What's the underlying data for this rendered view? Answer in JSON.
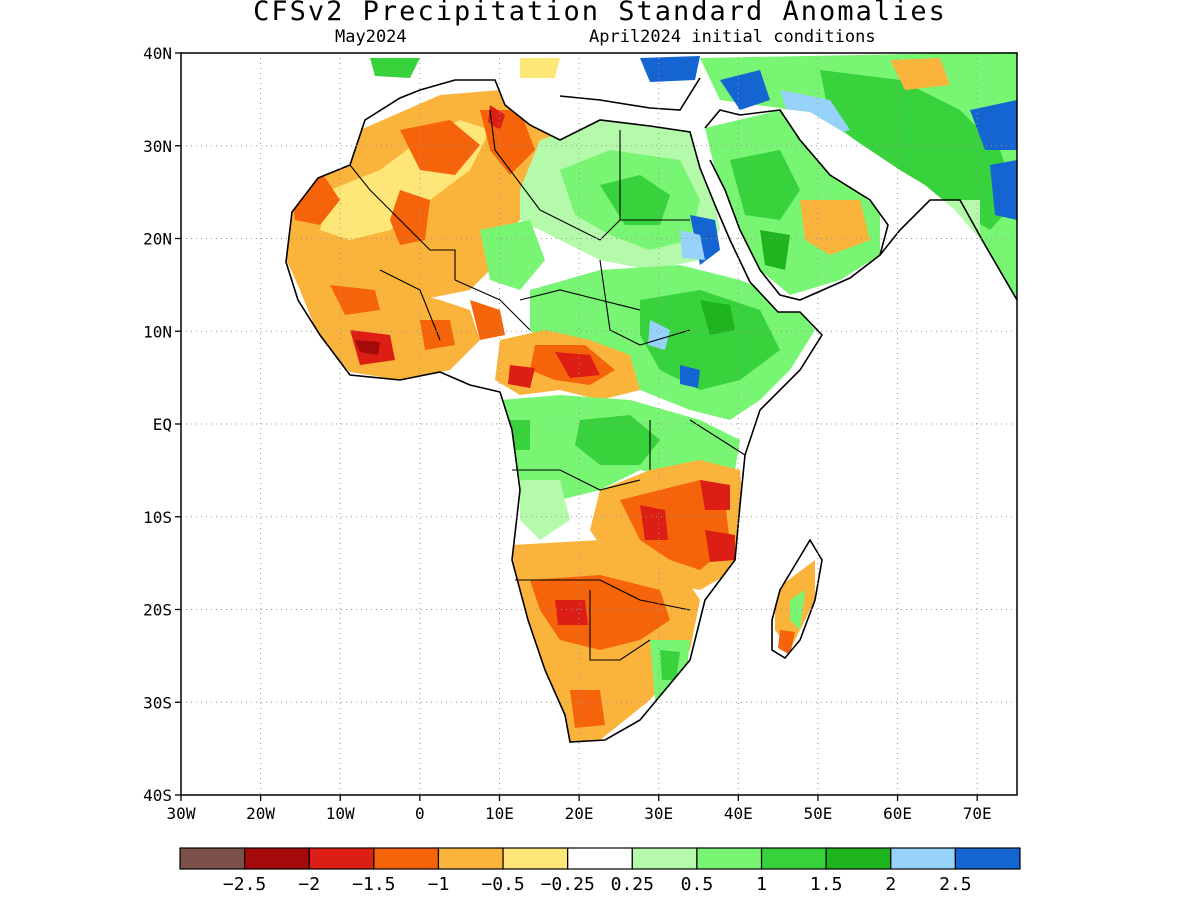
{
  "header": {
    "title": "CFSv2 Precipitation Standard Anomalies",
    "valid_month": "May2024",
    "init_conditions": "April2024 initial conditions"
  },
  "axes": {
    "lat_labels": [
      "40N",
      "30N",
      "20N",
      "10N",
      "EQ",
      "10S",
      "20S",
      "30S",
      "40S"
    ],
    "lat_values": [
      40,
      30,
      20,
      10,
      0,
      -10,
      -20,
      -30,
      -40
    ],
    "lon_labels": [
      "30W",
      "20W",
      "10W",
      "0",
      "10E",
      "20E",
      "30E",
      "40E",
      "50E",
      "60E",
      "70E"
    ],
    "lon_values": [
      -30,
      -20,
      -10,
      0,
      10,
      20,
      30,
      40,
      50,
      60,
      70
    ],
    "lon_range": [
      -30,
      75
    ],
    "lat_range": [
      -40,
      40
    ],
    "grid": "dotted"
  },
  "colorbar": {
    "colors": [
      "#7a5048",
      "#a50a0a",
      "#dc1e14",
      "#f5640a",
      "#fab43c",
      "#ffe678",
      "#ffffff",
      "#b4faaa",
      "#78f573",
      "#37d23c",
      "#1eb41e",
      "#96d2fa",
      "#1464d2"
    ],
    "labels": [
      "−2.5",
      "−2",
      "−1.5",
      "−1",
      "−0.5",
      "−0.25",
      "0.25",
      "0.5",
      "1",
      "1.5",
      "2",
      "2.5"
    ]
  }
}
